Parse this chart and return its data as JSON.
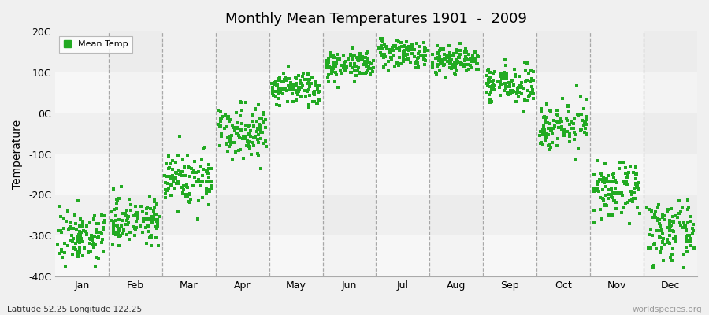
{
  "title": "Monthly Mean Temperatures 1901  -  2009",
  "ylabel": "Temperature",
  "bottom_left_text": "Latitude 52.25 Longitude 122.25",
  "bottom_right_text": "worldspecies.org",
  "legend_label": "Mean Temp",
  "ylim": [
    -40,
    20
  ],
  "yticks": [
    -40,
    -30,
    -20,
    -10,
    0,
    10,
    20
  ],
  "ytick_labels": [
    "-40C",
    "-30C",
    "-20C",
    "-10C",
    "0C",
    "10C",
    "20C"
  ],
  "months": [
    "Jan",
    "Feb",
    "Mar",
    "Apr",
    "May",
    "Jun",
    "Jul",
    "Aug",
    "Sep",
    "Oct",
    "Nov",
    "Dec"
  ],
  "mean_temps": [
    -30,
    -26,
    -16,
    -4,
    6,
    12,
    15,
    13,
    7,
    -3,
    -19,
    -29
  ],
  "spread": [
    4.5,
    4.0,
    5.0,
    4.5,
    3.0,
    2.5,
    2.5,
    2.5,
    3.0,
    4.0,
    4.5,
    5.0
  ],
  "dot_color": "#22AA22",
  "bg_color_light": "#F0F0F0",
  "bg_color_dark": "#E8E8E8",
  "grid_color": "#888888",
  "n_points": 109
}
